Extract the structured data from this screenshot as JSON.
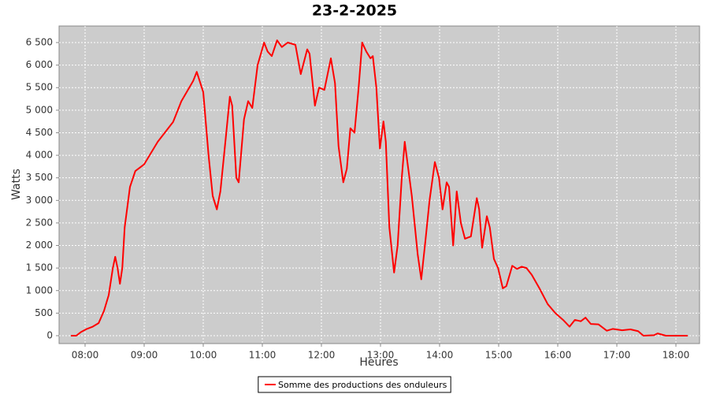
{
  "chart_data": {
    "type": "line",
    "title": "23-2-2025",
    "x_label": "Heures",
    "y_label": "Watts",
    "x": [
      7.76,
      7.85,
      7.93,
      8.03,
      8.13,
      8.23,
      8.32,
      8.4,
      8.47,
      8.51,
      8.55,
      8.59,
      8.63,
      8.67,
      8.76,
      8.85,
      9.0,
      9.23,
      9.49,
      9.63,
      9.83,
      9.89,
      10.0,
      10.09,
      10.16,
      10.23,
      10.29,
      10.39,
      10.45,
      10.49,
      10.56,
      10.6,
      10.69,
      10.76,
      10.83,
      10.92,
      11.03,
      11.09,
      11.16,
      11.25,
      11.33,
      11.43,
      11.56,
      11.65,
      11.76,
      11.8,
      11.89,
      11.96,
      12.05,
      12.16,
      12.23,
      12.29,
      12.37,
      12.43,
      12.49,
      12.56,
      12.63,
      12.69,
      12.76,
      12.83,
      12.87,
      12.93,
      12.99,
      13.05,
      13.09,
      13.15,
      13.23,
      13.29,
      13.36,
      13.41,
      13.47,
      13.53,
      13.63,
      13.69,
      13.76,
      13.83,
      13.92,
      13.99,
      14.05,
      14.12,
      14.16,
      14.23,
      14.29,
      14.36,
      14.43,
      14.53,
      14.63,
      14.67,
      14.72,
      14.8,
      14.85,
      14.92,
      14.99,
      15.07,
      15.13,
      15.23,
      15.31,
      15.39,
      15.47,
      15.56,
      15.69,
      15.83,
      15.96,
      16.09,
      16.2,
      16.29,
      16.39,
      16.47,
      16.56,
      16.69,
      16.83,
      16.93,
      17.09,
      17.23,
      17.36,
      17.45,
      17.63,
      17.69,
      17.83,
      18.2
    ],
    "series": [
      {
        "name": "Somme des productions des onduleurs",
        "color": "#ff0000",
        "values": [
          0,
          0,
          80,
          150,
          200,
          280,
          550,
          900,
          1500,
          1750,
          1500,
          1150,
          1500,
          2400,
          3300,
          3650,
          3800,
          4300,
          4740,
          5200,
          5650,
          5850,
          5400,
          4000,
          3100,
          2800,
          3200,
          4500,
          5300,
          5100,
          3500,
          3400,
          4800,
          5200,
          5050,
          6000,
          6500,
          6300,
          6200,
          6550,
          6400,
          6500,
          6450,
          5800,
          6350,
          6250,
          5100,
          5500,
          5450,
          6150,
          5600,
          4200,
          3400,
          3700,
          4600,
          4500,
          5500,
          6500,
          6300,
          6150,
          6200,
          5500,
          4150,
          4750,
          4300,
          2400,
          1400,
          2000,
          3500,
          4300,
          3700,
          3100,
          1800,
          1250,
          2100,
          3000,
          3850,
          3500,
          2800,
          3400,
          3300,
          2000,
          3200,
          2500,
          2150,
          2200,
          3050,
          2800,
          1950,
          2650,
          2400,
          1700,
          1500,
          1050,
          1100,
          1550,
          1480,
          1530,
          1500,
          1350,
          1050,
          700,
          500,
          350,
          200,
          350,
          320,
          400,
          260,
          250,
          110,
          150,
          120,
          140,
          100,
          0,
          10,
          50,
          0,
          0
        ]
      }
    ],
    "xlim": [
      7.56,
      18.4
    ],
    "xticks": [
      {
        "value": 8,
        "label": "08:00"
      },
      {
        "value": 9,
        "label": "09:00"
      },
      {
        "value": 10,
        "label": "10:00"
      },
      {
        "value": 11,
        "label": "11:00"
      },
      {
        "value": 12,
        "label": "12:00"
      },
      {
        "value": 13,
        "label": "13:00"
      },
      {
        "value": 14,
        "label": "14:00"
      },
      {
        "value": 15,
        "label": "15:00"
      },
      {
        "value": 16,
        "label": "16:00"
      },
      {
        "value": 17,
        "label": "17:00"
      },
      {
        "value": 18,
        "label": "18:00"
      }
    ],
    "ylim": [
      -175,
      6867
    ],
    "yticks": [
      0,
      500,
      {
        "value": 1000,
        "label": "1 000"
      },
      {
        "value": 1500,
        "label": "1 500"
      },
      {
        "value": 2000,
        "label": "2 000"
      },
      {
        "value": 2500,
        "label": "2 500"
      },
      {
        "value": 3000,
        "label": "3 000"
      },
      {
        "value": 3500,
        "label": "3 500"
      },
      {
        "value": 4000,
        "label": "4 000"
      },
      {
        "value": 4500,
        "label": "4 500"
      },
      {
        "value": 5000,
        "label": "5 000"
      },
      {
        "value": 5500,
        "label": "5 500"
      },
      {
        "value": 6000,
        "label": "6 000"
      },
      {
        "value": 6500,
        "label": "6 500"
      }
    ],
    "grid": true,
    "legend": "bottom"
  }
}
